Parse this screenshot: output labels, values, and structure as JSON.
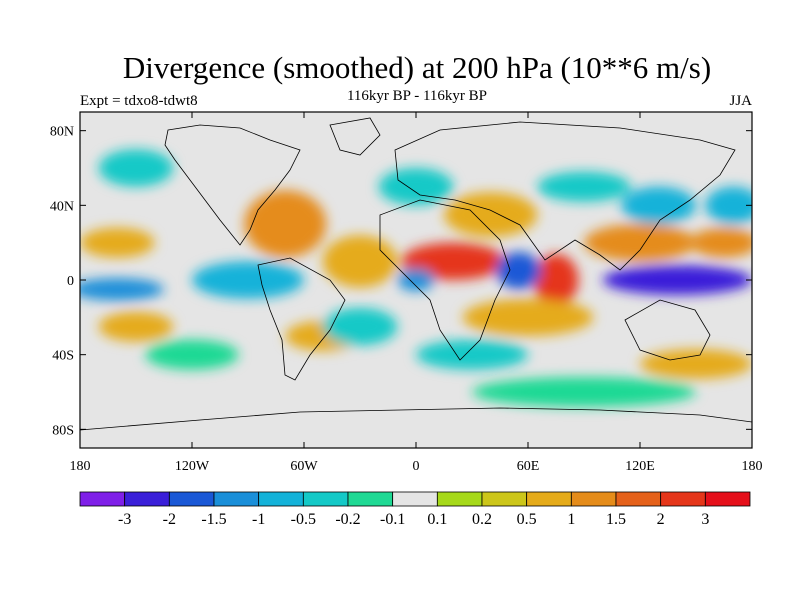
{
  "title": "Divergence (smoothed) at 200 hPa (10**6 m/s)",
  "subtitle": "116kyr BP - 116kyr BP",
  "experiment": "Expt = tdxo8-tdwt8",
  "season": "JJA",
  "chart_data": {
    "type": "heatmap",
    "projection": "cylindrical-equidistant",
    "lon_range": [
      -180,
      180
    ],
    "lat_range": [
      -90,
      90
    ],
    "y_ticks": [
      {
        "lat": 80,
        "label": "80N"
      },
      {
        "lat": 40,
        "label": "40N"
      },
      {
        "lat": 0,
        "label": "0"
      },
      {
        "lat": -40,
        "label": "40S"
      },
      {
        "lat": -80,
        "label": "80S"
      }
    ],
    "x_ticks": [
      {
        "lon": -180,
        "label": "180"
      },
      {
        "lon": -120,
        "label": "120W"
      },
      {
        "lon": -60,
        "label": "60W"
      },
      {
        "lon": 0,
        "label": "0"
      },
      {
        "lon": 60,
        "label": "60E"
      },
      {
        "lon": 120,
        "label": "120E"
      },
      {
        "lon": 180,
        "label": "180"
      }
    ],
    "colorbar": {
      "labels": [
        "-3",
        "-2",
        "-1.5",
        "-1",
        "-0.5",
        "-0.2",
        "-0.1",
        "0.1",
        "0.2",
        "0.5",
        "1",
        "1.5",
        "2",
        "3"
      ],
      "colors": [
        "#7f1fe8",
        "#3a1fd9",
        "#1a58d6",
        "#1a8fd9",
        "#13b2d9",
        "#14c9c7",
        "#1fd994",
        "#e5e5e5",
        "#a6d91a",
        "#ccc61a",
        "#e5ab1a",
        "#e58c1a",
        "#e5611a",
        "#e5361a",
        "#e50f1a"
      ]
    },
    "fields": [
      {
        "lon": -70,
        "lat": 30,
        "rx": 22,
        "ry": 18,
        "value": 1.2
      },
      {
        "lon": -30,
        "lat": 10,
        "rx": 20,
        "ry": 14,
        "value": 0.5
      },
      {
        "lon": 20,
        "lat": 10,
        "rx": 28,
        "ry": 10,
        "value": 2.5
      },
      {
        "lon": 75,
        "lat": 0,
        "rx": 12,
        "ry": 14,
        "value": 2.0
      },
      {
        "lon": 120,
        "lat": 20,
        "rx": 30,
        "ry": 10,
        "value": 1.0
      },
      {
        "lon": 165,
        "lat": 20,
        "rx": 18,
        "ry": 8,
        "value": 1.0
      },
      {
        "lon": -160,
        "lat": 20,
        "rx": 20,
        "ry": 8,
        "value": 0.6
      },
      {
        "lon": 40,
        "lat": 35,
        "rx": 25,
        "ry": 12,
        "value": 0.6
      },
      {
        "lon": 60,
        "lat": -20,
        "rx": 35,
        "ry": 10,
        "value": 0.5
      },
      {
        "lon": -150,
        "lat": -25,
        "rx": 20,
        "ry": 8,
        "value": 0.5
      },
      {
        "lon": 150,
        "lat": -45,
        "rx": 30,
        "ry": 8,
        "value": 0.5
      },
      {
        "lon": -50,
        "lat": -30,
        "rx": 20,
        "ry": 8,
        "value": 0.5
      },
      {
        "lon": 140,
        "lat": 0,
        "rx": 40,
        "ry": 8,
        "value": -2.5
      },
      {
        "lon": 55,
        "lat": 5,
        "rx": 12,
        "ry": 10,
        "value": -2.0
      },
      {
        "lon": 0,
        "lat": 0,
        "rx": 10,
        "ry": 6,
        "value": -1.5
      },
      {
        "lon": -160,
        "lat": -5,
        "rx": 25,
        "ry": 6,
        "value": -1.2
      },
      {
        "lon": -90,
        "lat": 0,
        "rx": 30,
        "ry": 10,
        "value": -0.8
      },
      {
        "lon": 130,
        "lat": 40,
        "rx": 20,
        "ry": 10,
        "value": -1.0
      },
      {
        "lon": 170,
        "lat": 40,
        "rx": 15,
        "ry": 10,
        "value": -1.0
      },
      {
        "lon": -150,
        "lat": 60,
        "rx": 20,
        "ry": 10,
        "value": -0.3
      },
      {
        "lon": 0,
        "lat": 50,
        "rx": 20,
        "ry": 10,
        "value": -0.5
      },
      {
        "lon": 90,
        "lat": 50,
        "rx": 25,
        "ry": 8,
        "value": -0.5
      },
      {
        "lon": -30,
        "lat": -25,
        "rx": 20,
        "ry": 10,
        "value": -0.4
      },
      {
        "lon": 30,
        "lat": -40,
        "rx": 30,
        "ry": 8,
        "value": -0.3
      },
      {
        "lon": -120,
        "lat": -40,
        "rx": 25,
        "ry": 8,
        "value": -0.2
      },
      {
        "lon": 90,
        "lat": -60,
        "rx": 60,
        "ry": 8,
        "value": -0.2
      }
    ]
  }
}
